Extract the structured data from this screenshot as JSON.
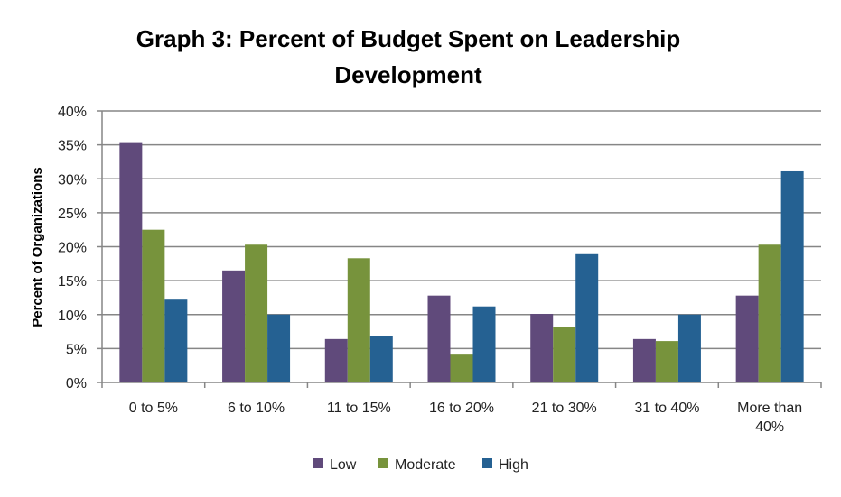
{
  "chart_data": {
    "type": "bar",
    "title": "Graph 3: Percent of Budget Spent on Leadership Development",
    "title_lines": [
      "Graph 3: Percent of Budget Spent on Leadership",
      "Development"
    ],
    "xlabel": "",
    "ylabel": "Percent of Organizations",
    "ylim": [
      0,
      40
    ],
    "yticks": [
      0,
      5,
      10,
      15,
      20,
      25,
      30,
      35,
      40
    ],
    "ytick_labels": [
      "0%",
      "5%",
      "10%",
      "15%",
      "20%",
      "25%",
      "30%",
      "35%",
      "40%"
    ],
    "grid": true,
    "legend_position": "bottom",
    "categories": [
      "0 to 5%",
      "6 to 10%",
      "11 to 15%",
      "16 to 20%",
      "21 to 30%",
      "31 to 40%",
      "More than 40%"
    ],
    "category_lines": [
      [
        "0 to 5%"
      ],
      [
        "6 to 10%"
      ],
      [
        "11 to 15%"
      ],
      [
        "16 to 20%"
      ],
      [
        "21 to 30%"
      ],
      [
        "31 to 40%"
      ],
      [
        "More than",
        "40%"
      ]
    ],
    "series": [
      {
        "name": "Low",
        "color": "#604a7b",
        "values": [
          35.4,
          16.5,
          6.4,
          12.8,
          10.1,
          6.4,
          12.8
        ]
      },
      {
        "name": "Moderate",
        "color": "#77933c",
        "values": [
          22.5,
          20.3,
          18.3,
          4.1,
          8.2,
          6.1,
          20.3
        ]
      },
      {
        "name": "High",
        "color": "#256192",
        "values": [
          12.2,
          10.0,
          6.8,
          11.2,
          18.9,
          10.0,
          31.1
        ]
      }
    ]
  }
}
